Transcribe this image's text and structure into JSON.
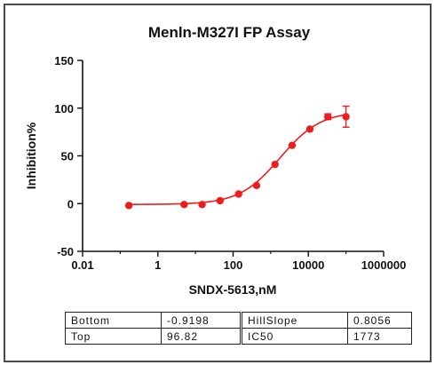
{
  "chart_data": {
    "type": "scatter",
    "title": "Menln-M327I FP Assay",
    "xlabel": "SNDX-5613,nM",
    "ylabel": "Inhibition%",
    "xscale": "log",
    "xlim": [
      0.01,
      1000000
    ],
    "ylim": [
      -50,
      150
    ],
    "xticks": [
      0.01,
      1,
      100,
      10000,
      1000000
    ],
    "xtick_labels": [
      "0.01",
      "1",
      "100",
      "10000",
      "1000000"
    ],
    "yticks": [
      -50,
      0,
      50,
      100,
      150
    ],
    "ytick_labels": [
      "-50",
      "0",
      "50",
      "100",
      "150"
    ],
    "grid": false,
    "color": "#ee1c1c",
    "series": [
      {
        "x": [
          0.17,
          5,
          15,
          45,
          140,
          420,
          1300,
          3700,
          11000,
          33000,
          100000
        ],
        "y": [
          -2,
          -1,
          -1,
          3,
          10,
          19,
          41,
          61,
          78,
          91,
          91
        ],
        "err": [
          0,
          0,
          0,
          0,
          0,
          0,
          0,
          0,
          0,
          3,
          11
        ]
      }
    ],
    "fit": {
      "bottom": -0.9198,
      "top": 96.82,
      "ic50": 1773,
      "hillslope": 0.8056
    }
  },
  "params_table": [
    {
      "label1": "Bottom",
      "value1": "-0.9198",
      "label2": "HillSlope",
      "value2": "0.8056"
    },
    {
      "label1": "Top",
      "value1": "96.82",
      "label2": "IC50",
      "value2": "1773"
    }
  ]
}
